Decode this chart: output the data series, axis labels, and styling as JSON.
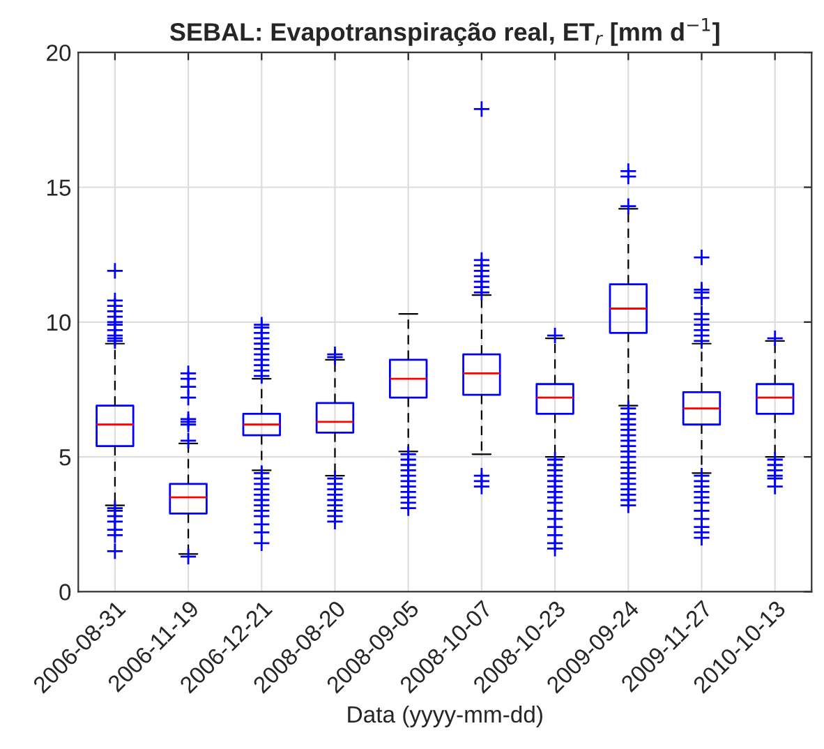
{
  "chart_data": {
    "type": "box",
    "title": "SEBAL: Evapotranspiração real, ET$_{r}$ [mm d$^{−1}$]",
    "xlabel": "Data (yyyy-mm-dd)",
    "categories": [
      "2006-08-31",
      "2006-11-19",
      "2006-12-21",
      "2008-08-20",
      "2008-09-05",
      "2008-10-07",
      "2008-10-23",
      "2009-09-24",
      "2009-11-27",
      "2010-10-13"
    ],
    "color": "#0000ff",
    "marker": "cross",
    "boxes": [
      {
        "low": 3.2,
        "q1": 5.4,
        "median": 6.2,
        "q3": 6.9,
        "high": 9.2,
        "outliers": [
          9.3,
          9.4,
          9.5,
          9.7,
          9.9,
          10.0,
          10.2,
          10.4,
          10.6,
          10.8,
          11.9,
          3.1,
          3.0,
          2.8,
          2.6,
          2.3,
          2.1,
          1.5
        ]
      },
      {
        "low": 1.4,
        "q1": 2.9,
        "median": 3.5,
        "q3": 4.0,
        "high": 5.5,
        "outliers": [
          5.6,
          6.2,
          6.3,
          6.4,
          7.2,
          7.6,
          7.9,
          8.1,
          1.3
        ]
      },
      {
        "low": 4.5,
        "q1": 5.8,
        "median": 6.2,
        "q3": 6.6,
        "high": 7.9,
        "outliers": [
          8.0,
          8.2,
          8.4,
          8.6,
          8.8,
          9.0,
          9.2,
          9.4,
          9.6,
          9.8,
          9.9,
          4.4,
          4.2,
          4.0,
          3.8,
          3.6,
          3.4,
          3.2,
          3.0,
          2.8,
          2.5,
          2.2,
          1.8
        ]
      },
      {
        "low": 4.3,
        "q1": 5.9,
        "median": 6.3,
        "q3": 7.0,
        "high": 8.6,
        "outliers": [
          8.7,
          8.8,
          4.2,
          4.0,
          3.8,
          3.6,
          3.4,
          3.2,
          3.0,
          2.8,
          2.6
        ]
      },
      {
        "low": 5.2,
        "q1": 7.2,
        "median": 7.9,
        "q3": 8.6,
        "high": 10.3,
        "outliers": [
          5.1,
          4.9,
          4.7,
          4.5,
          4.3,
          4.1,
          3.9,
          3.7,
          3.5,
          3.3,
          3.1
        ]
      },
      {
        "low": 5.1,
        "q1": 7.3,
        "median": 8.1,
        "q3": 8.8,
        "high": 11.0,
        "outliers": [
          11.1,
          11.3,
          11.5,
          11.7,
          11.9,
          12.1,
          12.3,
          17.9,
          4.3,
          4.1,
          3.9
        ]
      },
      {
        "low": 5.0,
        "q1": 6.6,
        "median": 7.2,
        "q3": 7.7,
        "high": 9.4,
        "outliers": [
          9.5,
          4.9,
          4.7,
          4.5,
          4.3,
          4.1,
          3.9,
          3.7,
          3.5,
          3.3,
          3.0,
          2.7,
          2.4,
          2.1,
          1.8,
          1.6
        ]
      },
      {
        "low": 6.9,
        "q1": 9.6,
        "median": 10.5,
        "q3": 11.4,
        "high": 14.2,
        "outliers": [
          14.3,
          15.4,
          15.6,
          6.8,
          6.6,
          6.4,
          6.2,
          6.0,
          5.8,
          5.6,
          5.4,
          5.2,
          5.0,
          4.8,
          4.6,
          4.4,
          4.2,
          4.0,
          3.8,
          3.6,
          3.4,
          3.2
        ]
      },
      {
        "low": 4.4,
        "q1": 6.2,
        "median": 6.8,
        "q3": 7.4,
        "high": 9.2,
        "outliers": [
          9.3,
          9.5,
          9.7,
          9.9,
          10.1,
          10.3,
          10.9,
          11.1,
          11.2,
          12.4,
          4.3,
          4.1,
          3.9,
          3.7,
          3.5,
          3.3,
          3.0,
          2.7,
          2.4,
          2.2,
          2.0
        ]
      },
      {
        "low": 5.0,
        "q1": 6.6,
        "median": 7.2,
        "q3": 7.7,
        "high": 9.3,
        "outliers": [
          9.4,
          4.9,
          4.7,
          4.5,
          4.3,
          4.2,
          3.9
        ]
      }
    ],
    "ylim": [
      0,
      20
    ],
    "yticks": [
      0,
      5,
      10,
      15,
      20
    ],
    "grid": true
  }
}
